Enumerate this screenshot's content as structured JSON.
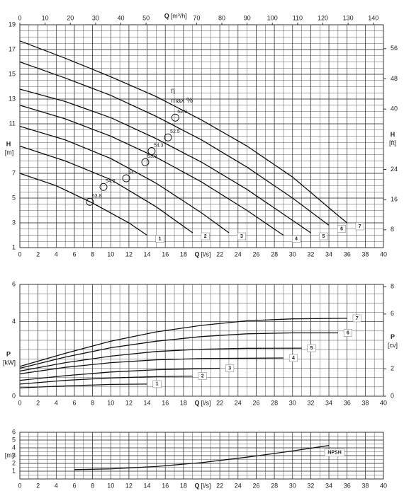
{
  "chart_data": [
    {
      "type": "line",
      "xlabel": "Q",
      "xunit": "[l/s]",
      "x2label": "Q",
      "x2unit": "[m³/h]",
      "ylabel": "H",
      "yunit": "[m]",
      "y2label": "H",
      "y2unit": "[ft]",
      "xlim": [
        0,
        40
      ],
      "xticks": [
        0,
        2,
        4,
        6,
        8,
        10,
        12,
        14,
        16,
        18,
        22,
        24,
        26,
        28,
        30,
        32,
        34,
        36,
        38,
        40
      ],
      "x2lim": [
        0,
        144
      ],
      "x2ticks": [
        0,
        10,
        20,
        30,
        40,
        50,
        70,
        80,
        90,
        100,
        110,
        120,
        130,
        140
      ],
      "ylim": [
        1,
        19
      ],
      "yticks": [
        1,
        3,
        5,
        7,
        11,
        13,
        15,
        17,
        19
      ],
      "y2lim": [
        3.28,
        62.34
      ],
      "y2ticks": [
        8,
        16,
        24,
        40,
        48,
        56
      ],
      "grid": true,
      "color": "#111111",
      "annotations": [
        "η",
        "max %"
      ],
      "series": [
        {
          "name": "1",
          "x": [
            0,
            4,
            8,
            12,
            14
          ],
          "values": [
            7,
            6,
            4.6,
            3,
            2
          ]
        },
        {
          "name": "2",
          "x": [
            0,
            5,
            10,
            15,
            19
          ],
          "values": [
            9.2,
            8,
            6.5,
            4.3,
            2.2
          ]
        },
        {
          "name": "3",
          "x": [
            0,
            5,
            10,
            15,
            20,
            23
          ],
          "values": [
            10.8,
            9.7,
            8.2,
            6.2,
            3.8,
            2.2
          ]
        },
        {
          "name": "4",
          "x": [
            0,
            5,
            10,
            15,
            20,
            25,
            29
          ],
          "values": [
            12.5,
            11.4,
            10,
            8.3,
            6.3,
            4,
            2
          ]
        },
        {
          "name": "5",
          "x": [
            0,
            5,
            10,
            15,
            20,
            25,
            30,
            32
          ],
          "values": [
            13.8,
            12.8,
            11.5,
            9.8,
            7.9,
            5.7,
            3.2,
            2.2
          ]
        },
        {
          "name": "6",
          "x": [
            0,
            5,
            10,
            15,
            20,
            25,
            30,
            34
          ],
          "values": [
            16,
            14.7,
            13.3,
            11.6,
            9.7,
            7.5,
            5,
            2.8
          ]
        },
        {
          "name": "7",
          "x": [
            0,
            5,
            10,
            15,
            20,
            25,
            30,
            35,
            36
          ],
          "values": [
            17.7,
            16.3,
            14.8,
            13.2,
            11.3,
            9.2,
            6.7,
            3.6,
            3
          ]
        }
      ],
      "efficiency": [
        {
          "x": 7.7,
          "y": 4.7,
          "label": "53.8"
        },
        {
          "x": 9.2,
          "y": 5.9,
          "label": "54.2"
        },
        {
          "x": 11.7,
          "y": 6.6,
          "label": "54"
        },
        {
          "x": 13.8,
          "y": 7.9,
          "label": "53.8"
        },
        {
          "x": 14.5,
          "y": 8.8,
          "label": "54.3"
        },
        {
          "x": 16.3,
          "y": 9.9,
          "label": "52.5"
        },
        {
          "x": 17.1,
          "y": 11.5,
          "label": "52.9"
        }
      ]
    },
    {
      "type": "line",
      "xlabel": "Q",
      "xunit": "[l/s]",
      "ylabel": "P",
      "yunit": "[kW]",
      "y2label": "P",
      "y2unit": "[cv]",
      "xlim": [
        0,
        40
      ],
      "xticks": [
        0,
        2,
        4,
        6,
        8,
        10,
        12,
        14,
        16,
        18,
        22,
        24,
        26,
        28,
        30,
        32,
        34,
        36,
        38,
        40
      ],
      "ylim": [
        0,
        6
      ],
      "yticks": [
        0,
        4,
        6
      ],
      "y2lim": [
        0,
        8.16
      ],
      "y2ticks": [
        0,
        2,
        6,
        8
      ],
      "grid": true,
      "color": "#111111",
      "series": [
        {
          "name": "1",
          "x": [
            0,
            5,
            10,
            14
          ],
          "values": [
            0.45,
            0.55,
            0.63,
            0.65
          ]
        },
        {
          "name": "2",
          "x": [
            0,
            5,
            10,
            15,
            19
          ],
          "values": [
            0.65,
            0.85,
            0.98,
            1.05,
            1.08
          ]
        },
        {
          "name": "3",
          "x": [
            0,
            5,
            10,
            15,
            22
          ],
          "values": [
            0.85,
            1.1,
            1.3,
            1.42,
            1.5
          ]
        },
        {
          "name": "4",
          "x": [
            0,
            5,
            10,
            15,
            20,
            29
          ],
          "values": [
            1.2,
            1.55,
            1.8,
            1.95,
            2.02,
            2.05
          ]
        },
        {
          "name": "5",
          "x": [
            0,
            5,
            10,
            15,
            20,
            25,
            31
          ],
          "values": [
            1.35,
            1.8,
            2.15,
            2.4,
            2.52,
            2.57,
            2.58
          ]
        },
        {
          "name": "6",
          "x": [
            0,
            5,
            10,
            15,
            20,
            25,
            30,
            35
          ],
          "values": [
            1.5,
            2.1,
            2.6,
            2.95,
            3.2,
            3.35,
            3.4,
            3.4
          ]
        },
        {
          "name": "7",
          "x": [
            0,
            5,
            10,
            15,
            20,
            25,
            30,
            36
          ],
          "values": [
            1.6,
            2.3,
            2.95,
            3.45,
            3.8,
            4.05,
            4.15,
            4.18
          ]
        }
      ]
    },
    {
      "type": "line",
      "xlabel": "Q",
      "xunit": "[l/s]",
      "yunit": "[m]",
      "xlim": [
        0,
        40
      ],
      "xticks": [
        0,
        2,
        4,
        6,
        8,
        10,
        12,
        14,
        16,
        18,
        22,
        24,
        26,
        28,
        30,
        32,
        34,
        36,
        38,
        40
      ],
      "ylim": [
        0,
        6
      ],
      "yticks": [
        1,
        2,
        3,
        4,
        5,
        6
      ],
      "grid": true,
      "color": "#111111",
      "series": [
        {
          "name": "NPSH",
          "x": [
            6,
            10,
            15,
            20,
            25,
            30,
            34
          ],
          "values": [
            1.2,
            1.3,
            1.6,
            2.1,
            2.8,
            3.6,
            4.3
          ]
        }
      ]
    }
  ]
}
